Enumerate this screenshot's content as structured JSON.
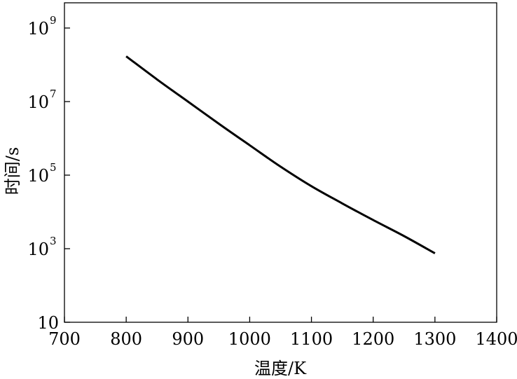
{
  "chart_data": {
    "type": "line",
    "xlabel": "温度/K",
    "ylabel": "时间/s",
    "xlim": [
      700,
      1400
    ],
    "ylim": [
      10,
      6000000000
    ],
    "yscale": "log",
    "grid": false,
    "x_ticks": [
      "700",
      "800",
      "900",
      "1000",
      "1100",
      "1200",
      "1300",
      "1400"
    ],
    "y_ticks": [
      {
        "value": 10,
        "base": "10",
        "exp": ""
      },
      {
        "value": 1000,
        "base": "10",
        "exp": "3"
      },
      {
        "value": 100000,
        "base": "10",
        "exp": "5"
      },
      {
        "value": 10000000,
        "base": "10",
        "exp": "7"
      },
      {
        "value": 1000000000,
        "base": "10",
        "exp": "9"
      }
    ],
    "series": [
      {
        "color": "#000000",
        "x": [
          800,
          850,
          900,
          950,
          1000,
          1050,
          1100,
          1150,
          1200,
          1250,
          1300
        ],
        "y": [
          170000000,
          40000000,
          10000000,
          2500000,
          650000,
          170000,
          50000,
          17000,
          6000,
          2200,
          750
        ]
      }
    ]
  }
}
